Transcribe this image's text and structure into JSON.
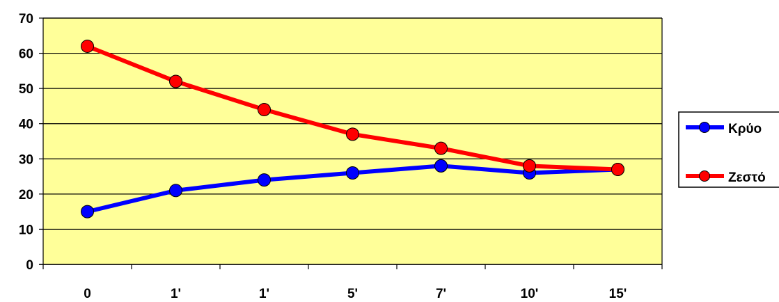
{
  "chart_data": {
    "type": "line",
    "categories": [
      "0",
      "1'",
      "1'",
      "5'",
      "7'",
      "10'",
      "15'"
    ],
    "series": [
      {
        "name": "Κρύο",
        "color": "#0000ff",
        "values": [
          15,
          21,
          24,
          26,
          28,
          26,
          27
        ]
      },
      {
        "name": "Ζεστό",
        "color": "#ff0000",
        "values": [
          62,
          52,
          44,
          37,
          33,
          28,
          27
        ]
      }
    ],
    "yticks": [
      0,
      10,
      20,
      30,
      40,
      50,
      60,
      70
    ],
    "ylim": [
      0,
      70
    ],
    "grid": true,
    "plot_background": "#ffff99",
    "legend_position": "right",
    "title": "",
    "xlabel": "",
    "ylabel": ""
  }
}
